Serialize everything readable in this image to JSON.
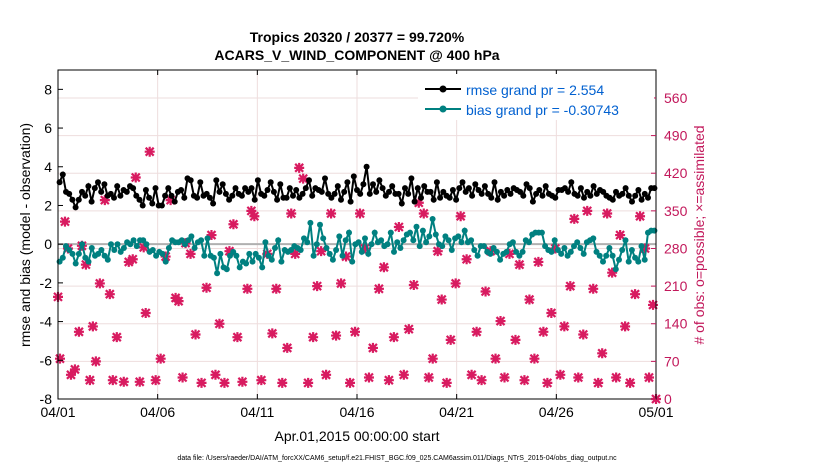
{
  "chart_data": {
    "type": "line",
    "title_line1": "Tropics 20320 / 20377 = 99.720%",
    "title_line2": "ACARS_V_WIND_COMPONENT @ 400 hPa",
    "xlabel": "Apr.01,2015 00:00:00 start",
    "ylabel_left": "rmse and bias (model - observation)",
    "ylabel_right": "# of obs: o=possible; ×=assimilated",
    "footer": "data file: /Users/raeder/DAI/ATM_forcXX/CAM6_setup/f.e21.FHIST_BGC.f09_025.CAM6assim.011/Diags_NTrS_2015-04/obs_diag_output.nc",
    "xlim": [
      0,
      30
    ],
    "ylim_left": [
      -8,
      9
    ],
    "ylim_right": [
      0,
      612
    ],
    "x_ticks": [
      0,
      5,
      10,
      15,
      20,
      25,
      30
    ],
    "x_tick_labels": [
      "04/01",
      "04/06",
      "04/11",
      "04/16",
      "04/21",
      "04/26",
      "05/01"
    ],
    "y_left_ticks": [
      -8,
      -6,
      -4,
      -2,
      0,
      2,
      4,
      6,
      8
    ],
    "y_left_tick_labels": [
      "-8",
      "-6",
      "-4",
      "-2",
      "0",
      "2",
      "4",
      "6",
      "8"
    ],
    "y_right_ticks": [
      0,
      70,
      140,
      210,
      280,
      350,
      420,
      490,
      560
    ],
    "y_right_tick_labels": [
      "0",
      "70",
      "140",
      "210",
      "280",
      "350",
      "420",
      "490",
      "560"
    ],
    "legend_position": "top-right",
    "colors": {
      "rmse": "#000000",
      "bias": "#008080",
      "obs": "#d81b60",
      "zero_line": "#b0b0b0",
      "legend_text": "#0060d0",
      "right_axis": "#c2185b",
      "grid": "#eedddd"
    },
    "series": [
      {
        "name": "rmse grand pr = 2.554",
        "color": "#000000",
        "values": [
          3.2,
          3.6,
          2.7,
          2.6,
          2.3,
          1.9,
          2.3,
          2.7,
          2.5,
          3.0,
          2.2,
          2.9,
          3.2,
          2.7,
          3.1,
          2.5,
          2.6,
          2.4,
          3.0,
          2.5,
          2.8,
          2.7,
          3.0,
          2.9,
          2.5,
          2.3,
          2.0,
          2.8,
          2.4,
          2.1,
          2.9,
          2.0,
          2.0,
          2.5,
          2.9,
          2.5,
          2.2,
          2.7,
          2.8,
          2.4,
          3.4,
          3.3,
          2.5,
          2.4,
          3.2,
          2.5,
          2.6,
          2.4,
          2.1,
          3.3,
          2.7,
          3.1,
          2.6,
          2.3,
          2.5,
          2.9,
          2.6,
          2.5,
          2.9,
          2.7,
          2.9,
          2.3,
          3.3,
          2.6,
          2.5,
          2.8,
          3.2,
          2.7,
          2.3,
          3.1,
          2.4,
          2.4,
          2.9,
          2.5,
          2.8,
          2.4,
          2.6,
          2.9,
          3.3,
          2.5,
          2.9,
          2.8,
          2.7,
          3.4,
          2.6,
          2.4,
          2.6,
          3.0,
          2.3,
          2.7,
          3.2,
          2.2,
          3.5,
          2.8,
          2.6,
          3.1,
          4.0,
          2.6,
          3.1,
          2.7,
          3.3,
          2.9,
          2.5,
          2.7,
          3.0,
          2.6,
          2.6,
          2.1,
          2.9,
          2.6,
          3.4,
          2.2,
          2.9,
          2.4,
          3.0,
          2.7,
          2.7,
          2.3,
          3.2,
          2.4,
          2.7,
          2.5,
          2.4,
          2.8,
          2.3,
          2.9,
          3.2,
          2.7,
          2.9,
          2.5,
          3.1,
          2.8,
          2.6,
          3.0,
          2.6,
          2.4,
          3.2,
          2.3,
          2.7,
          2.5,
          2.8,
          2.6,
          2.9,
          2.8,
          2.7,
          2.5,
          3.1,
          2.9,
          2.2,
          2.6,
          2.8,
          2.5,
          3.0,
          2.6,
          2.5,
          2.4,
          2.8,
          2.8,
          2.9,
          2.7,
          3.2,
          2.6,
          2.5,
          2.9,
          2.4,
          2.7,
          2.5,
          3.0,
          2.6,
          2.8,
          2.7,
          2.5,
          2.4,
          2.3,
          2.7,
          2.5,
          2.6,
          2.9,
          2.5,
          2.2,
          2.5,
          2.8,
          2.3,
          2.6,
          2.4,
          2.9,
          2.9
        ]
      },
      {
        "name": "bias grand pr = -0.30743",
        "color": "#008080",
        "values": [
          -0.9,
          -0.7,
          -0.1,
          -0.3,
          -0.5,
          -1.0,
          -0.5,
          0.0,
          -0.7,
          -0.9,
          -0.2,
          -0.6,
          -0.5,
          -0.3,
          -0.6,
          -0.8,
          0.0,
          -0.3,
          0.0,
          -0.4,
          -0.2,
          0.1,
          0.0,
          0.2,
          -0.1,
          0.2,
          0.2,
          0.0,
          -0.4,
          -0.3,
          -0.6,
          -0.4,
          -0.5,
          -0.9,
          -0.2,
          0.2,
          0.1,
          0.1,
          0.2,
          0.0,
          0.2,
          0.4,
          -0.2,
          0.1,
          0.2,
          -0.6,
          0.3,
          -0.6,
          -0.7,
          -1.5,
          -0.5,
          -1.2,
          -1.3,
          -0.6,
          -0.4,
          -0.6,
          -1.2,
          -0.9,
          -1.0,
          -0.5,
          -0.9,
          -0.5,
          -0.7,
          -1.2,
          0.1,
          -0.6,
          -0.8,
          -0.2,
          0.2,
          -0.9,
          -0.3,
          -0.4,
          -0.3,
          -0.1,
          -0.2,
          -0.3,
          0.3,
          0.1,
          1.1,
          -0.6,
          0.0,
          1.0,
          0.3,
          -0.2,
          -0.5,
          -0.8,
          -0.3,
          0.4,
          -0.6,
          0.2,
          0.6,
          -0.9,
          0.0,
          0.1,
          -0.4,
          0.3,
          -0.5,
          0.0,
          0.6,
          0.1,
          0.2,
          -0.1,
          0.0,
          0.6,
          -0.4,
          0.1,
          -0.2,
          0.2,
          0.5,
          0.6,
          0.2,
          0.9,
          -0.1,
          0.7,
          0.1,
          0.4,
          1.3,
          0.5,
          0.0,
          -0.1,
          0.4,
          0.2,
          -0.3,
          0.3,
          0.4,
          0.1,
          0.7,
          0.1,
          0.2,
          -0.3,
          -0.6,
          -0.1,
          -0.1,
          -0.4,
          -0.5,
          -0.2,
          -0.4,
          -0.8,
          -0.5,
          -0.4,
          0.0,
          0.1,
          -0.4,
          -0.6,
          -0.4,
          0.2,
          0.1,
          0.5,
          0.6,
          0.6,
          0.6,
          -0.1,
          -0.3,
          -0.4,
          0.2,
          -0.3,
          -0.5,
          -0.2,
          -0.6,
          -0.4,
          -0.1,
          0.1,
          -0.2,
          -0.5,
          0.1,
          0.2,
          0.3,
          -0.4,
          -0.6,
          -0.9,
          -0.6,
          -0.2,
          -0.6,
          -1.3,
          -0.8,
          -0.3,
          0.2,
          -0.9,
          -0.3,
          -0.7,
          -0.9,
          -0.1,
          -0.8,
          0.6,
          0.7,
          0.7
        ]
      }
    ],
    "obs_assimilated": [
      {
        "x": 0.0,
        "y": 190
      },
      {
        "x": 0.1,
        "y": 75
      },
      {
        "x": 0.35,
        "y": 330
      },
      {
        "x": 0.5,
        "y": 280
      },
      {
        "x": 0.65,
        "y": 45
      },
      {
        "x": 0.85,
        "y": 55
      },
      {
        "x": 1.05,
        "y": 125
      },
      {
        "x": 1.2,
        "y": 285
      },
      {
        "x": 1.4,
        "y": 250
      },
      {
        "x": 1.6,
        "y": 35
      },
      {
        "x": 1.75,
        "y": 135
      },
      {
        "x": 1.9,
        "y": 70
      },
      {
        "x": 2.1,
        "y": 215
      },
      {
        "x": 2.35,
        "y": 370
      },
      {
        "x": 2.6,
        "y": 195
      },
      {
        "x": 2.75,
        "y": 35
      },
      {
        "x": 2.95,
        "y": 115
      },
      {
        "x": 3.3,
        "y": 32
      },
      {
        "x": 3.55,
        "y": 255
      },
      {
        "x": 3.75,
        "y": 260
      },
      {
        "x": 3.9,
        "y": 412
      },
      {
        "x": 4.1,
        "y": 32
      },
      {
        "x": 4.3,
        "y": 282
      },
      {
        "x": 4.4,
        "y": 160
      },
      {
        "x": 4.6,
        "y": 460
      },
      {
        "x": 4.9,
        "y": 35
      },
      {
        "x": 5.15,
        "y": 75
      },
      {
        "x": 5.4,
        "y": 265
      },
      {
        "x": 5.65,
        "y": 370
      },
      {
        "x": 5.9,
        "y": 188
      },
      {
        "x": 6.05,
        "y": 182
      },
      {
        "x": 6.25,
        "y": 40
      },
      {
        "x": 6.4,
        "y": 290
      },
      {
        "x": 6.65,
        "y": 270
      },
      {
        "x": 6.9,
        "y": 120
      },
      {
        "x": 7.2,
        "y": 30
      },
      {
        "x": 7.45,
        "y": 207
      },
      {
        "x": 7.7,
        "y": 305
      },
      {
        "x": 7.9,
        "y": 45
      },
      {
        "x": 8.1,
        "y": 140
      },
      {
        "x": 8.35,
        "y": 30
      },
      {
        "x": 8.6,
        "y": 275
      },
      {
        "x": 8.8,
        "y": 325
      },
      {
        "x": 9.0,
        "y": 115
      },
      {
        "x": 9.25,
        "y": 32
      },
      {
        "x": 9.5,
        "y": 205
      },
      {
        "x": 9.7,
        "y": 350
      },
      {
        "x": 9.85,
        "y": 340
      },
      {
        "x": 10.2,
        "y": 35
      },
      {
        "x": 10.5,
        "y": 270
      },
      {
        "x": 10.75,
        "y": 122
      },
      {
        "x": 10.95,
        "y": 205
      },
      {
        "x": 11.25,
        "y": 30
      },
      {
        "x": 11.5,
        "y": 95
      },
      {
        "x": 11.7,
        "y": 345
      },
      {
        "x": 11.9,
        "y": 270
      },
      {
        "x": 12.1,
        "y": 430
      },
      {
        "x": 12.3,
        "y": 410
      },
      {
        "x": 12.55,
        "y": 30
      },
      {
        "x": 12.8,
        "y": 115
      },
      {
        "x": 13.0,
        "y": 210
      },
      {
        "x": 13.2,
        "y": 275
      },
      {
        "x": 13.45,
        "y": 45
      },
      {
        "x": 13.7,
        "y": 345
      },
      {
        "x": 13.95,
        "y": 118
      },
      {
        "x": 14.2,
        "y": 215
      },
      {
        "x": 14.45,
        "y": 265
      },
      {
        "x": 14.65,
        "y": 30
      },
      {
        "x": 14.9,
        "y": 125
      },
      {
        "x": 15.15,
        "y": 345
      },
      {
        "x": 15.4,
        "y": 280
      },
      {
        "x": 15.6,
        "y": 40
      },
      {
        "x": 15.8,
        "y": 95
      },
      {
        "x": 16.1,
        "y": 205
      },
      {
        "x": 16.35,
        "y": 245
      },
      {
        "x": 16.6,
        "y": 35
      },
      {
        "x": 16.85,
        "y": 115
      },
      {
        "x": 17.1,
        "y": 320
      },
      {
        "x": 17.35,
        "y": 45
      },
      {
        "x": 17.6,
        "y": 130
      },
      {
        "x": 17.85,
        "y": 212
      },
      {
        "x": 18.1,
        "y": 365
      },
      {
        "x": 18.35,
        "y": 345
      },
      {
        "x": 18.6,
        "y": 40
      },
      {
        "x": 18.8,
        "y": 75
      },
      {
        "x": 19.05,
        "y": 275
      },
      {
        "x": 19.25,
        "y": 185
      },
      {
        "x": 19.5,
        "y": 30
      },
      {
        "x": 19.7,
        "y": 110
      },
      {
        "x": 19.95,
        "y": 215
      },
      {
        "x": 20.2,
        "y": 340
      },
      {
        "x": 20.5,
        "y": 260
      },
      {
        "x": 20.75,
        "y": 45
      },
      {
        "x": 21.0,
        "y": 125
      },
      {
        "x": 21.25,
        "y": 35
      },
      {
        "x": 21.45,
        "y": 200
      },
      {
        "x": 21.7,
        "y": 275
      },
      {
        "x": 21.95,
        "y": 75
      },
      {
        "x": 22.2,
        "y": 145
      },
      {
        "x": 22.4,
        "y": 40
      },
      {
        "x": 22.65,
        "y": 270
      },
      {
        "x": 22.95,
        "y": 110
      },
      {
        "x": 23.15,
        "y": 250
      },
      {
        "x": 23.4,
        "y": 35
      },
      {
        "x": 23.65,
        "y": 185
      },
      {
        "x": 23.9,
        "y": 75
      },
      {
        "x": 24.1,
        "y": 255
      },
      {
        "x": 24.35,
        "y": 125
      },
      {
        "x": 24.55,
        "y": 30
      },
      {
        "x": 24.75,
        "y": 160
      },
      {
        "x": 24.95,
        "y": 280
      },
      {
        "x": 25.2,
        "y": 45
      },
      {
        "x": 25.4,
        "y": 135
      },
      {
        "x": 25.7,
        "y": 210
      },
      {
        "x": 25.9,
        "y": 335
      },
      {
        "x": 26.1,
        "y": 40
      },
      {
        "x": 26.35,
        "y": 120
      },
      {
        "x": 26.55,
        "y": 350
      },
      {
        "x": 26.85,
        "y": 205
      },
      {
        "x": 27.1,
        "y": 30
      },
      {
        "x": 27.3,
        "y": 85
      },
      {
        "x": 27.55,
        "y": 345
      },
      {
        "x": 27.8,
        "y": 235
      },
      {
        "x": 28.0,
        "y": 40
      },
      {
        "x": 28.2,
        "y": 305
      },
      {
        "x": 28.45,
        "y": 135
      },
      {
        "x": 28.7,
        "y": 30
      },
      {
        "x": 28.95,
        "y": 195
      },
      {
        "x": 29.2,
        "y": 340
      },
      {
        "x": 29.45,
        "y": 280
      },
      {
        "x": 29.65,
        "y": 40
      },
      {
        "x": 29.85,
        "y": 175
      },
      {
        "x": 30.0,
        "y": 0
      }
    ]
  }
}
